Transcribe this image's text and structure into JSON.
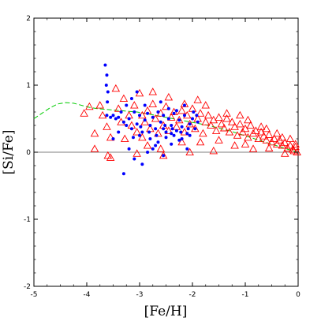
{
  "chart_data": {
    "type": "scatter",
    "title": "",
    "xlabel": "[Fe/H]",
    "ylabel": "[Si/Fe]",
    "xlim": [
      -5,
      0
    ],
    "ylim": [
      -2,
      2
    ],
    "grid": false,
    "legend": "none",
    "zero_line": true,
    "x_ticks": [
      {
        "value": -5,
        "label": "-5"
      },
      {
        "value": -4,
        "label": "-4"
      },
      {
        "value": -3,
        "label": "-3"
      },
      {
        "value": -2,
        "label": "-2"
      },
      {
        "value": -1,
        "label": "-1"
      },
      {
        "value": 0,
        "label": "0"
      }
    ],
    "y_ticks": [
      {
        "value": -2,
        "label": "-2"
      },
      {
        "value": -1,
        "label": "-1"
      },
      {
        "value": 0,
        "label": "0"
      },
      {
        "value": 1,
        "label": "1"
      },
      {
        "value": 2,
        "label": "2"
      }
    ],
    "series": [
      {
        "style": "triangle",
        "color": "#ff0000",
        "points": [
          [
            -3.95,
            0.68
          ],
          [
            -3.85,
            0.28
          ],
          [
            -3.7,
            0.55
          ],
          [
            -3.62,
            0.38
          ],
          [
            -3.55,
            0.22
          ],
          [
            -3.45,
            0.95
          ],
          [
            -3.4,
            0.65
          ],
          [
            -3.35,
            0.45
          ],
          [
            -3.3,
            0.8
          ],
          [
            -3.28,
            0.2
          ],
          [
            -3.2,
            0.55
          ],
          [
            -3.15,
            0.4
          ],
          [
            -3.1,
            0.7
          ],
          [
            -3.05,
            0.3
          ],
          [
            -3.0,
            0.88
          ],
          [
            -2.95,
            0.55
          ],
          [
            -2.9,
            0.45
          ],
          [
            -2.85,
            0.62
          ],
          [
            -2.8,
            0.35
          ],
          [
            -2.75,
            0.72
          ],
          [
            -2.7,
            0.5
          ],
          [
            -2.65,
            0.28
          ],
          [
            -2.6,
            0.58
          ],
          [
            -2.55,
            0.4
          ],
          [
            -2.5,
            0.68
          ],
          [
            -2.45,
            0.32
          ],
          [
            -2.4,
            0.52
          ],
          [
            -2.35,
            0.6
          ],
          [
            -2.3,
            0.38
          ],
          [
            -2.25,
            0.48
          ],
          [
            -2.2,
            0.62
          ],
          [
            -2.15,
            0.3
          ],
          [
            -2.1,
            0.55
          ],
          [
            -2.05,
            0.42
          ],
          [
            -2.0,
            0.65
          ],
          [
            -1.95,
            0.35
          ],
          [
            -1.9,
            0.5
          ],
          [
            -1.85,
            0.58
          ],
          [
            -1.8,
            0.28
          ],
          [
            -1.75,
            0.45
          ],
          [
            -1.7,
            0.55
          ],
          [
            -1.65,
            0.4
          ],
          [
            -1.6,
            0.48
          ],
          [
            -1.55,
            0.32
          ],
          [
            -1.5,
            0.52
          ],
          [
            -1.45,
            0.42
          ],
          [
            -1.4,
            0.36
          ],
          [
            -1.35,
            0.5
          ],
          [
            -1.3,
            0.3
          ],
          [
            -1.25,
            0.45
          ],
          [
            -1.2,
            0.38
          ],
          [
            -1.15,
            0.25
          ],
          [
            -1.1,
            0.42
          ],
          [
            -1.05,
            0.3
          ],
          [
            -1.0,
            0.35
          ],
          [
            -0.95,
            0.22
          ],
          [
            -0.9,
            0.4
          ],
          [
            -0.85,
            0.28
          ],
          [
            -0.8,
            0.32
          ],
          [
            -0.75,
            0.2
          ],
          [
            -0.7,
            0.3
          ],
          [
            -0.65,
            0.24
          ],
          [
            -0.6,
            0.18
          ],
          [
            -0.55,
            0.26
          ],
          [
            -0.5,
            0.15
          ],
          [
            -0.45,
            0.2
          ],
          [
            -0.4,
            0.12
          ],
          [
            -0.35,
            0.18
          ],
          [
            -0.3,
            0.1
          ],
          [
            -0.25,
            0.14
          ],
          [
            -0.2,
            0.06
          ],
          [
            -0.15,
            0.1
          ],
          [
            -0.1,
            0.04
          ],
          [
            -0.05,
            0.08
          ],
          [
            -0.02,
            0.0
          ],
          [
            -3.55,
            -0.08
          ],
          [
            -3.05,
            -0.02
          ],
          [
            -2.55,
            -0.05
          ],
          [
            -2.05,
            0.0
          ],
          [
            -1.6,
            0.02
          ],
          [
            -1.2,
            0.1
          ],
          [
            -0.85,
            0.05
          ],
          [
            -0.55,
            0.06
          ],
          [
            -0.25,
            -0.02
          ],
          [
            -1.75,
            0.7
          ],
          [
            -1.35,
            0.58
          ],
          [
            -0.95,
            0.48
          ],
          [
            -2.45,
            0.82
          ],
          [
            -2.75,
            0.9
          ],
          [
            -3.85,
            0.05
          ],
          [
            -4.05,
            0.58
          ],
          [
            -3.75,
            0.7
          ],
          [
            -2.2,
            0.15
          ],
          [
            -1.5,
            0.18
          ],
          [
            -0.7,
            0.38
          ],
          [
            -0.4,
            0.28
          ],
          [
            -0.15,
            0.2
          ],
          [
            -0.05,
            0.12
          ],
          [
            -1.9,
            0.78
          ],
          [
            -2.85,
            0.1
          ],
          [
            -3.6,
            -0.05
          ],
          [
            -2.95,
            0.22
          ],
          [
            -2.15,
            0.72
          ],
          [
            -1.1,
            0.55
          ],
          [
            -0.6,
            0.35
          ],
          [
            -0.3,
            0.22
          ],
          [
            -0.08,
            0.02
          ],
          [
            -1.0,
            0.12
          ],
          [
            -2.6,
            0.05
          ],
          [
            -1.85,
            0.15
          ]
        ]
      },
      {
        "style": "dot",
        "color": "#0000ff",
        "points": [
          [
            -3.65,
            1.3
          ],
          [
            -3.62,
            1.15
          ],
          [
            -3.63,
            1.0
          ],
          [
            -3.6,
            0.9
          ],
          [
            -3.61,
            0.75
          ],
          [
            -3.62,
            0.55
          ],
          [
            -3.55,
            0.52
          ],
          [
            -3.5,
            0.55
          ],
          [
            -3.45,
            0.5
          ],
          [
            -3.4,
            0.52
          ],
          [
            -3.35,
            0.6
          ],
          [
            -3.3,
            0.45
          ],
          [
            -3.25,
            0.7
          ],
          [
            -3.2,
            0.5
          ],
          [
            -3.15,
            0.35
          ],
          [
            -3.1,
            0.6
          ],
          [
            -3.05,
            0.42
          ],
          [
            -3.0,
            0.55
          ],
          [
            -2.95,
            0.3
          ],
          [
            -2.9,
            0.48
          ],
          [
            -2.85,
            0.58
          ],
          [
            -2.8,
            0.4
          ],
          [
            -2.75,
            0.52
          ],
          [
            -2.7,
            0.35
          ],
          [
            -2.65,
            0.6
          ],
          [
            -2.6,
            0.45
          ],
          [
            -2.55,
            0.55
          ],
          [
            -2.5,
            0.3
          ],
          [
            -2.45,
            0.5
          ],
          [
            -2.4,
            0.4
          ],
          [
            -2.35,
            0.58
          ],
          [
            -2.3,
            0.32
          ],
          [
            -2.25,
            0.48
          ],
          [
            -2.2,
            0.38
          ],
          [
            -2.15,
            0.55
          ],
          [
            -2.1,
            0.28
          ],
          [
            -2.05,
            0.42
          ],
          [
            -2.0,
            0.5
          ],
          [
            -1.95,
            0.35
          ],
          [
            -1.9,
            0.45
          ],
          [
            -3.3,
            -0.32
          ],
          [
            -3.2,
            0.05
          ],
          [
            -3.1,
            -0.1
          ],
          [
            -2.95,
            -0.18
          ],
          [
            -2.85,
            0.0
          ],
          [
            -2.7,
            0.1
          ],
          [
            -2.55,
            -0.05
          ],
          [
            -2.4,
            0.12
          ],
          [
            -2.25,
            0.18
          ],
          [
            -2.1,
            0.05
          ],
          [
            -3.5,
            0.2
          ],
          [
            -3.4,
            0.3
          ],
          [
            -3.15,
            0.8
          ],
          [
            -3.0,
            0.25
          ],
          [
            -2.8,
            0.2
          ],
          [
            -2.65,
            0.15
          ],
          [
            -2.5,
            0.22
          ],
          [
            -2.35,
            0.25
          ],
          [
            -2.2,
            0.2
          ],
          [
            -2.05,
            0.25
          ],
          [
            -3.05,
            0.9
          ],
          [
            -2.9,
            0.7
          ],
          [
            -2.6,
            0.75
          ],
          [
            -2.45,
            0.65
          ],
          [
            -2.3,
            0.62
          ],
          [
            -2.15,
            0.7
          ],
          [
            -1.98,
            0.6
          ],
          [
            -2.75,
            0.05
          ],
          [
            -2.55,
            0.35
          ],
          [
            -2.4,
            0.28
          ],
          [
            -3.25,
            0.4
          ],
          [
            -3.12,
            0.22
          ],
          [
            -2.98,
            0.38
          ],
          [
            -2.82,
            0.3
          ],
          [
            -2.68,
            0.25
          ],
          [
            -2.52,
            0.4
          ],
          [
            -2.38,
            0.35
          ],
          [
            -2.22,
            0.3
          ],
          [
            -2.08,
            0.35
          ],
          [
            -1.92,
            0.55
          ]
        ]
      },
      {
        "style": "dashed-line",
        "color": "#00cc00",
        "points": [
          [
            -5.0,
            0.5
          ],
          [
            -4.85,
            0.58
          ],
          [
            -4.7,
            0.66
          ],
          [
            -4.55,
            0.72
          ],
          [
            -4.4,
            0.74
          ],
          [
            -4.25,
            0.73
          ],
          [
            -4.1,
            0.7
          ],
          [
            -3.95,
            0.67
          ],
          [
            -3.8,
            0.65
          ],
          [
            -3.65,
            0.64
          ],
          [
            -3.5,
            0.63
          ],
          [
            -3.35,
            0.62
          ],
          [
            -3.2,
            0.61
          ],
          [
            -3.05,
            0.6
          ],
          [
            -2.9,
            0.58
          ],
          [
            -2.7,
            0.55
          ],
          [
            -2.5,
            0.52
          ],
          [
            -2.3,
            0.49
          ],
          [
            -2.1,
            0.46
          ],
          [
            -1.9,
            0.43
          ],
          [
            -1.7,
            0.4
          ],
          [
            -1.5,
            0.36
          ],
          [
            -1.3,
            0.32
          ],
          [
            -1.1,
            0.27
          ],
          [
            -0.9,
            0.22
          ],
          [
            -0.7,
            0.17
          ],
          [
            -0.5,
            0.12
          ],
          [
            -0.3,
            0.07
          ],
          [
            -0.1,
            0.02
          ],
          [
            0.0,
            0.0
          ]
        ]
      }
    ]
  }
}
